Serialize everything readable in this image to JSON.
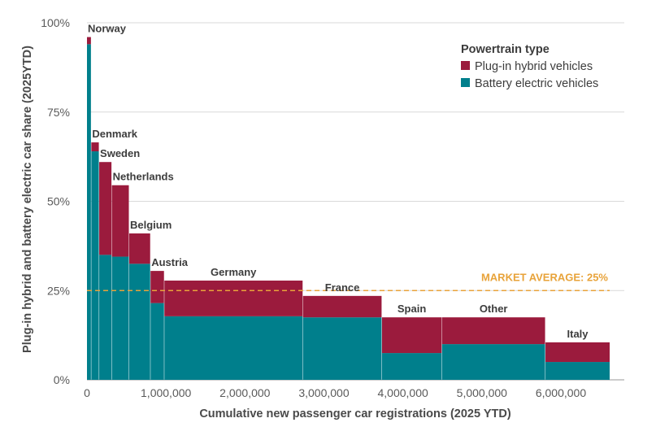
{
  "chart_data": {
    "type": "bar",
    "subtype": "variable-width stacked (marimekko)",
    "title": "",
    "xlabel": "Cumulative new passenger car registrations (2025 YTD)",
    "ylabel": "Plug-in hybrid and battery electric car share (2025YTD)",
    "xlim": [
      0,
      6700000
    ],
    "ylim": [
      0,
      100
    ],
    "x_ticks": [
      0,
      1000000,
      2000000,
      3000000,
      4000000,
      5000000,
      6000000
    ],
    "x_tick_labels": [
      "0",
      "1,000,000",
      "2,000,000",
      "3,000,000",
      "4,000,000",
      "5,000,000",
      "6,000,000"
    ],
    "y_ticks": [
      0,
      25,
      50,
      75,
      100
    ],
    "y_tick_labels": [
      "0%",
      "25%",
      "50%",
      "75%",
      "100%"
    ],
    "grid": "horizontal",
    "legend": {
      "title": "Powertrain type",
      "placement": "top-right",
      "entries": [
        {
          "label": "Plug-in hybrid vehicles",
          "color": "#9b1b3d"
        },
        {
          "label": "Battery electric vehicles",
          "color": "#007f8c"
        }
      ]
    },
    "reference_line": {
      "value": 25,
      "label": "MARKET AVERAGE: 25%",
      "color": "#e8a33a",
      "style": "dashed"
    },
    "series_colors": {
      "bev": "#007f8c",
      "phev": "#9b1b3d"
    },
    "categories": [
      "Norway",
      "Denmark",
      "Sweden",
      "Netherlands",
      "Belgium",
      "Austria",
      "Germany",
      "France",
      "Spain",
      "Other",
      "Italy"
    ],
    "bars": [
      {
        "country": "Norway",
        "x_start": 0,
        "x_end": 50000,
        "bev": 94,
        "phev": 2
      },
      {
        "country": "Denmark",
        "x_start": 55000,
        "x_end": 150000,
        "bev": 64,
        "phev": 2.5
      },
      {
        "country": "Sweden",
        "x_start": 155000,
        "x_end": 310000,
        "bev": 35,
        "phev": 26
      },
      {
        "country": "Netherlands",
        "x_start": 315000,
        "x_end": 530000,
        "bev": 34.5,
        "phev": 20
      },
      {
        "country": "Belgium",
        "x_start": 535000,
        "x_end": 800000,
        "bev": 32.5,
        "phev": 8.5
      },
      {
        "country": "Austria",
        "x_start": 805000,
        "x_end": 975000,
        "bev": 21.5,
        "phev": 9
      },
      {
        "country": "Germany",
        "x_start": 980000,
        "x_end": 2730000,
        "bev": 17.8,
        "phev": 10
      },
      {
        "country": "France",
        "x_start": 2735000,
        "x_end": 3730000,
        "bev": 17.5,
        "phev": 6
      },
      {
        "country": "Spain",
        "x_start": 3735000,
        "x_end": 4490000,
        "bev": 7.5,
        "phev": 10
      },
      {
        "country": "Other",
        "x_start": 4495000,
        "x_end": 5800000,
        "bev": 10,
        "phev": 7.5
      },
      {
        "country": "Italy",
        "x_start": 5805000,
        "x_end": 6800000,
        "bev": 5,
        "phev": 5.5
      }
    ]
  }
}
